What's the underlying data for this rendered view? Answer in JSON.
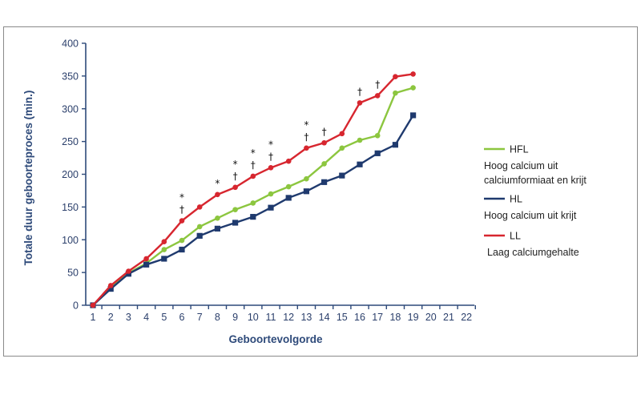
{
  "chart_data": {
    "type": "line",
    "title": "",
    "xlabel": "Geboortevolgorde",
    "ylabel": "Totale duur geboorteproces (min.)",
    "xlim": [
      1,
      22
    ],
    "ylim": [
      0,
      400
    ],
    "x_ticks": [
      "1",
      "2",
      "3",
      "4",
      "5",
      "6",
      "7",
      "8",
      "9",
      "10",
      "11",
      "12",
      "13",
      "14",
      "15",
      "16",
      "17",
      "18",
      "19",
      "20",
      "21",
      "22"
    ],
    "y_ticks": [
      "0",
      "50",
      "100",
      "150",
      "200",
      "250",
      "300",
      "350",
      "400"
    ],
    "grid": false,
    "legend_position": "right",
    "series": [
      {
        "name": "HFL",
        "description": [
          "Hoog calcium uit",
          "calciumformiaat en krijt"
        ],
        "color": "#8cc63f",
        "marker": "circle",
        "x": [
          1,
          2,
          3,
          4,
          5,
          6,
          7,
          8,
          9,
          10,
          11,
          12,
          13,
          14,
          15,
          16,
          17,
          18,
          19
        ],
        "values": [
          0,
          27,
          49,
          64,
          85,
          99,
          120,
          133,
          146,
          156,
          170,
          181,
          193,
          216,
          240,
          252,
          259,
          324,
          332
        ]
      },
      {
        "name": "HL",
        "description": [
          "Hoog calcium uit krijt"
        ],
        "color": "#1f3a6e",
        "marker": "square",
        "x": [
          1,
          2,
          3,
          4,
          5,
          6,
          7,
          8,
          9,
          10,
          11,
          12,
          13,
          14,
          15,
          16,
          17,
          18,
          19
        ],
        "values": [
          0,
          25,
          48,
          62,
          71,
          85,
          106,
          117,
          126,
          135,
          149,
          164,
          174,
          188,
          198,
          215,
          232,
          245,
          290
        ]
      },
      {
        "name": "LL",
        "description": [
          "Laag calciumgehalte"
        ],
        "color": "#d7262f",
        "marker": "circle",
        "x": [
          1,
          2,
          3,
          4,
          5,
          6,
          7,
          8,
          9,
          10,
          11,
          12,
          13,
          14,
          15,
          16,
          17,
          18,
          19
        ],
        "values": [
          0,
          30,
          52,
          71,
          97,
          129,
          150,
          169,
          180,
          197,
          210,
          220,
          240,
          248,
          262,
          309,
          320,
          349,
          353
        ]
      }
    ],
    "annotations": [
      {
        "x": 6,
        "symbols": [
          "*",
          "†"
        ]
      },
      {
        "x": 8,
        "symbols": [
          "*"
        ]
      },
      {
        "x": 9,
        "symbols": [
          "*",
          "†"
        ]
      },
      {
        "x": 10,
        "symbols": [
          "*",
          "†"
        ]
      },
      {
        "x": 11,
        "symbols": [
          "*",
          "†"
        ]
      },
      {
        "x": 13,
        "symbols": [
          "*",
          "†"
        ]
      },
      {
        "x": 14,
        "symbols": [
          "†"
        ]
      },
      {
        "x": 16,
        "symbols": [
          "†"
        ]
      },
      {
        "x": 17,
        "symbols": [
          "†"
        ]
      }
    ]
  }
}
